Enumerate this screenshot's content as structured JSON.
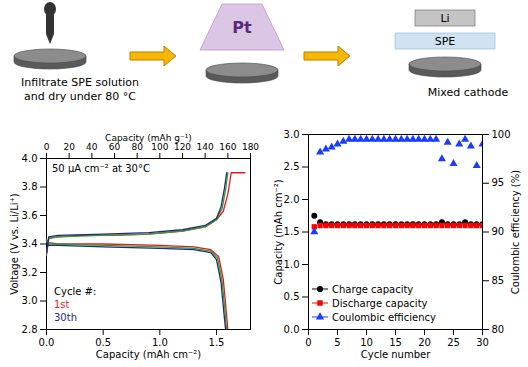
{
  "schematic": {
    "steps": [
      {
        "label_lines": [
          "Infiltrate SPE solution",
          "and dry under 80 °C"
        ]
      },
      {
        "label": "Pt"
      },
      {
        "layers": [
          "Li",
          "SPE"
        ],
        "label": "Mixed cathode"
      }
    ]
  },
  "chart_data": [
    {
      "type": "line",
      "xlabel": "Capacity (mAh cm⁻²)",
      "ylabel": "Voltage (V vs. Li/Li⁺)",
      "x2label": "Capacity (mAh g⁻¹)",
      "annotation": "50 µA cm⁻² at 30°C",
      "legend_title": "Cycle #:",
      "legend": "lower left",
      "xlim": [
        0,
        1.8
      ],
      "xticks": [
        {
          "value": 0,
          "label": "0.0"
        },
        0.5,
        {
          "value": 1,
          "label": "1.0"
        },
        1.5
      ],
      "x2lim": [
        0,
        180
      ],
      "x2ticks": [
        0,
        20,
        40,
        60,
        80,
        100,
        120,
        140,
        160,
        180
      ],
      "ylim": [
        2.8,
        4.0
      ],
      "yticks": [
        2.8,
        {
          "value": 3,
          "label": "3.0"
        },
        3.2,
        3.4,
        3.6,
        3.8,
        {
          "value": 4,
          "label": "4.0"
        }
      ],
      "series": [
        {
          "name": "1st",
          "color": "#e31a1c",
          "x": [
            0,
            0.02,
            0.1,
            0.3,
            0.6,
            0.9,
            1.2,
            1.4,
            1.5,
            1.56,
            1.6,
            1.63,
            1.68,
            1.75,
            null,
            0,
            0.02,
            0.1,
            0.5,
            1.0,
            1.3,
            1.45,
            1.52,
            1.56,
            1.58,
            1.6
          ],
          "values": [
            3.32,
            3.44,
            3.45,
            3.46,
            3.46,
            3.47,
            3.49,
            3.52,
            3.57,
            3.63,
            3.75,
            3.9,
            3.9,
            3.9,
            null,
            3.43,
            3.41,
            3.4,
            3.4,
            3.39,
            3.38,
            3.36,
            3.31,
            3.15,
            2.98,
            2.8
          ]
        },
        {
          "color": "#33a02c",
          "x": [
            0,
            0.02,
            0.1,
            0.5,
            0.9,
            1.2,
            1.4,
            1.5,
            1.55,
            1.58,
            1.6,
            null,
            0,
            0.02,
            0.1,
            0.5,
            1.0,
            1.3,
            1.45,
            1.51,
            1.55,
            1.57,
            1.59
          ],
          "values": [
            3.33,
            3.44,
            3.45,
            3.46,
            3.47,
            3.49,
            3.52,
            3.57,
            3.65,
            3.78,
            3.9,
            null,
            3.42,
            3.4,
            3.4,
            3.39,
            3.38,
            3.37,
            3.35,
            3.3,
            3.14,
            2.97,
            2.8
          ]
        },
        {
          "name": "30th",
          "color": "#1c2a80",
          "x": [
            0,
            0.02,
            0.1,
            0.5,
            0.9,
            1.2,
            1.4,
            1.5,
            1.54,
            1.57,
            1.59,
            null,
            0,
            0.02,
            0.1,
            0.5,
            1.0,
            1.3,
            1.45,
            1.5,
            1.54,
            1.56,
            1.58
          ],
          "values": [
            3.34,
            3.45,
            3.46,
            3.47,
            3.48,
            3.5,
            3.53,
            3.58,
            3.66,
            3.79,
            3.9,
            null,
            3.41,
            3.39,
            3.39,
            3.38,
            3.37,
            3.36,
            3.34,
            3.29,
            3.13,
            2.96,
            2.8
          ]
        }
      ]
    },
    {
      "type": "scatter",
      "xlabel": "Cycle number",
      "ylabel": "Capacity (mAh cm⁻²)",
      "y2label": "Coulombic efficiency (%)",
      "legend": "lower left",
      "xlim": [
        0,
        30
      ],
      "xticks": [
        0,
        5,
        10,
        15,
        20,
        25,
        30
      ],
      "ylim": [
        0,
        3
      ],
      "yticks": [
        {
          "value": 0,
          "label": "0.0"
        },
        0.5,
        {
          "value": 1,
          "label": "1.0"
        },
        1.5,
        {
          "value": 2,
          "label": "2.0"
        },
        2.5,
        {
          "value": 3,
          "label": "3.0"
        }
      ],
      "y2lim": [
        80,
        100
      ],
      "y2ticks": [
        80,
        85,
        90,
        95,
        100
      ],
      "x": [
        1,
        2,
        3,
        4,
        5,
        6,
        7,
        8,
        9,
        10,
        11,
        12,
        13,
        14,
        15,
        16,
        17,
        18,
        19,
        20,
        21,
        22,
        23,
        24,
        25,
        26,
        27,
        28,
        29,
        30
      ],
      "series": [
        {
          "name": "Charge capacity",
          "color": "#000000",
          "marker": "circle",
          "values": [
            1.75,
            1.65,
            1.62,
            1.62,
            1.62,
            1.62,
            1.62,
            1.62,
            1.62,
            1.62,
            1.62,
            1.62,
            1.62,
            1.62,
            1.62,
            1.62,
            1.62,
            1.62,
            1.62,
            1.62,
            1.62,
            1.62,
            1.65,
            1.62,
            1.62,
            1.62,
            1.65,
            1.62,
            1.62,
            1.62
          ]
        },
        {
          "name": "Discharge capacity",
          "color": "#ff0000",
          "marker": "square",
          "values": [
            1.58,
            1.6,
            1.6,
            1.6,
            1.6,
            1.6,
            1.6,
            1.6,
            1.6,
            1.6,
            1.6,
            1.6,
            1.6,
            1.6,
            1.6,
            1.6,
            1.6,
            1.6,
            1.6,
            1.6,
            1.6,
            1.6,
            1.6,
            1.6,
            1.6,
            1.6,
            1.6,
            1.6,
            1.6,
            1.6
          ]
        },
        {
          "name": "Coulombic efficiency",
          "color": "#1a3cff",
          "marker": "triangle",
          "axis": "y2",
          "values": [
            90,
            98.2,
            98.5,
            98.7,
            99,
            99.3,
            99.5,
            99.5,
            99.5,
            99.5,
            99.5,
            99.5,
            99.5,
            99.5,
            99.5,
            99.5,
            99.5,
            99.5,
            99.5,
            99.5,
            99.5,
            99.5,
            97.5,
            99.2,
            97,
            99,
            99.5,
            98.8,
            96.8,
            99
          ]
        }
      ]
    }
  ]
}
